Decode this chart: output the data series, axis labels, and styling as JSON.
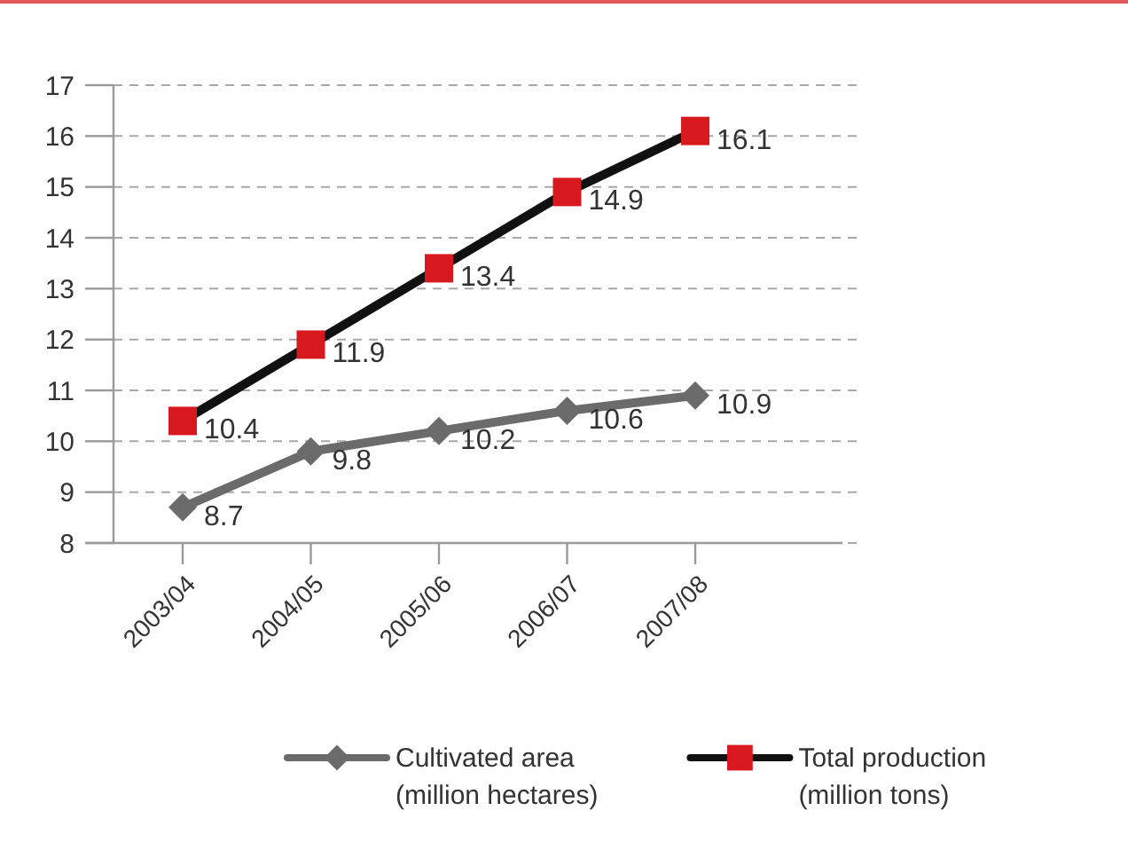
{
  "chart_data": {
    "type": "line",
    "categories": [
      "2003/04",
      "2004/05",
      "2005/06",
      "2006/07",
      "2007/08"
    ],
    "series": [
      {
        "name": "Cultivated area (million hectares)",
        "color": "#6b6b6b",
        "marker": "diamond",
        "values": [
          8.7,
          9.8,
          10.2,
          10.6,
          10.9
        ]
      },
      {
        "name": "Total production (million tons)",
        "color": "#111111",
        "marker": "square",
        "colors": [
          "#d7191f",
          "#d7191f",
          "#d7191f",
          "#d7191f",
          "#d7191f"
        ],
        "values": [
          10.4,
          11.9,
          13.4,
          14.9,
          16.1
        ]
      }
    ],
    "ylim": [
      8,
      17
    ],
    "yticks": [
      8,
      9,
      10,
      11,
      12,
      13,
      14,
      15,
      16,
      17
    ],
    "grid": "y",
    "line_style": "solid",
    "legend": "bottom",
    "data_labels": true
  }
}
